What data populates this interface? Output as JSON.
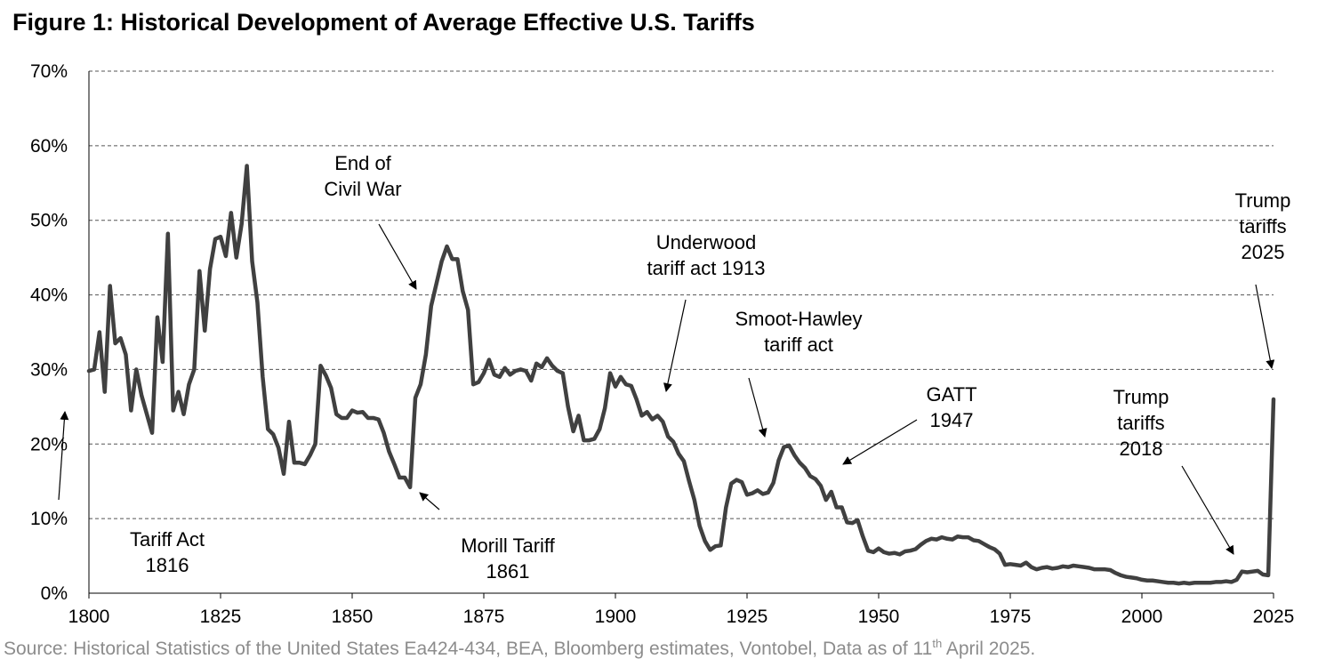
{
  "title": "Figure 1: Historical Development of Average Effective U.S. Tariffs",
  "source": {
    "text_before": "Source: Historical Statistics of the United States Ea424-434, BEA, Bloomberg estimates, Vontobel, Data as of  11",
    "superscript": "th",
    "text_after": " April 2025."
  },
  "chart_data": {
    "type": "line",
    "title": "Figure 1: Historical Development of Average Effective U.S. Tariffs",
    "xlabel": "",
    "ylabel": "",
    "xlim": [
      1800,
      2025
    ],
    "ylim": [
      0,
      70
    ],
    "grid": true,
    "x_ticks": [
      1800,
      1825,
      1850,
      1875,
      1900,
      1925,
      1950,
      1975,
      2000,
      2025
    ],
    "y_ticks": [
      0,
      10,
      20,
      30,
      40,
      50,
      60,
      70
    ],
    "y_tick_labels": [
      "0%",
      "10%",
      "20%",
      "30%",
      "40%",
      "50%",
      "60%",
      "70%"
    ],
    "series_color": "#404040",
    "series": [
      {
        "points": [
          [
            1800,
            29.8
          ],
          [
            1801,
            30
          ],
          [
            1802,
            35
          ],
          [
            1803,
            27
          ],
          [
            1804,
            41.2
          ],
          [
            1805,
            33.5
          ],
          [
            1806,
            34.2
          ],
          [
            1807,
            32
          ],
          [
            1808,
            24.5
          ],
          [
            1809,
            30
          ],
          [
            1810,
            26.5
          ],
          [
            1811,
            24
          ],
          [
            1812,
            21.5
          ],
          [
            1813,
            37
          ],
          [
            1814,
            31
          ],
          [
            1815,
            48.2
          ],
          [
            1816,
            24.5
          ],
          [
            1817,
            27
          ],
          [
            1818,
            24
          ],
          [
            1819,
            28
          ],
          [
            1820,
            30
          ],
          [
            1821,
            43.2
          ],
          [
            1822,
            35.2
          ],
          [
            1823,
            43.5
          ],
          [
            1824,
            47.5
          ],
          [
            1825,
            47.8
          ],
          [
            1826,
            45.2
          ],
          [
            1827,
            51
          ],
          [
            1828,
            45
          ],
          [
            1829,
            49.5
          ],
          [
            1830,
            57.3
          ],
          [
            1831,
            44.5
          ],
          [
            1832,
            39
          ],
          [
            1833,
            29
          ],
          [
            1834,
            22
          ],
          [
            1835,
            21.3
          ],
          [
            1836,
            19.5
          ],
          [
            1837,
            16
          ],
          [
            1838,
            23
          ],
          [
            1839,
            17.5
          ],
          [
            1840,
            17.5
          ],
          [
            1841,
            17.3
          ],
          [
            1842,
            18.5
          ],
          [
            1843,
            20
          ],
          [
            1844,
            30.5
          ],
          [
            1845,
            29.2
          ],
          [
            1846,
            27.5
          ],
          [
            1847,
            24
          ],
          [
            1848,
            23.5
          ],
          [
            1849,
            23.5
          ],
          [
            1850,
            24.5
          ],
          [
            1851,
            24.2
          ],
          [
            1852,
            24.3
          ],
          [
            1853,
            23.5
          ],
          [
            1854,
            23.5
          ],
          [
            1855,
            23.3
          ],
          [
            1856,
            21.5
          ],
          [
            1857,
            19
          ],
          [
            1858,
            17.3
          ],
          [
            1859,
            15.5
          ],
          [
            1860,
            15.5
          ],
          [
            1861,
            14.2
          ],
          [
            1862,
            26.2
          ],
          [
            1863,
            28
          ],
          [
            1864,
            32
          ],
          [
            1865,
            38.5
          ],
          [
            1866,
            41.5
          ],
          [
            1867,
            44.5
          ],
          [
            1868,
            46.5
          ],
          [
            1869,
            44.8
          ],
          [
            1870,
            44.8
          ],
          [
            1871,
            40.5
          ],
          [
            1872,
            38
          ],
          [
            1873,
            28
          ],
          [
            1874,
            28.3
          ],
          [
            1875,
            29.5
          ],
          [
            1876,
            31.3
          ],
          [
            1877,
            29.3
          ],
          [
            1878,
            29
          ],
          [
            1879,
            30.2
          ],
          [
            1880,
            29.3
          ],
          [
            1881,
            29.8
          ],
          [
            1882,
            30
          ],
          [
            1883,
            29.8
          ],
          [
            1884,
            28.5
          ],
          [
            1885,
            30.8
          ],
          [
            1886,
            30.3
          ],
          [
            1887,
            31.5
          ],
          [
            1888,
            30.5
          ],
          [
            1889,
            29.8
          ],
          [
            1890,
            29.5
          ],
          [
            1891,
            25
          ],
          [
            1892,
            21.7
          ],
          [
            1893,
            23.8
          ],
          [
            1894,
            20.5
          ],
          [
            1895,
            20.5
          ],
          [
            1896,
            20.7
          ],
          [
            1897,
            22
          ],
          [
            1898,
            24.8
          ],
          [
            1899,
            29.5
          ],
          [
            1900,
            27.7
          ],
          [
            1901,
            29
          ],
          [
            1902,
            28
          ],
          [
            1903,
            27.8
          ],
          [
            1904,
            26
          ],
          [
            1905,
            23.8
          ],
          [
            1906,
            24.3
          ],
          [
            1907,
            23.3
          ],
          [
            1908,
            23.8
          ],
          [
            1909,
            23
          ],
          [
            1910,
            21
          ],
          [
            1911,
            20.3
          ],
          [
            1912,
            18.7
          ],
          [
            1913,
            17.7
          ],
          [
            1914,
            15
          ],
          [
            1915,
            12.5
          ],
          [
            1916,
            9
          ],
          [
            1917,
            7
          ],
          [
            1918,
            5.8
          ],
          [
            1919,
            6.3
          ],
          [
            1920,
            6.4
          ],
          [
            1921,
            11.5
          ],
          [
            1922,
            14.7
          ],
          [
            1923,
            15.2
          ],
          [
            1924,
            14.9
          ],
          [
            1925,
            13.2
          ],
          [
            1926,
            13.4
          ],
          [
            1927,
            13.8
          ],
          [
            1928,
            13.3
          ],
          [
            1929,
            13.5
          ],
          [
            1930,
            14.8
          ],
          [
            1931,
            17.8
          ],
          [
            1932,
            19.6
          ],
          [
            1933,
            19.8
          ],
          [
            1934,
            18.5
          ],
          [
            1935,
            17.5
          ],
          [
            1936,
            16.8
          ],
          [
            1937,
            15.7
          ],
          [
            1938,
            15.3
          ],
          [
            1939,
            14.4
          ],
          [
            1940,
            12.5
          ],
          [
            1941,
            13.6
          ],
          [
            1942,
            11.5
          ],
          [
            1943,
            11.5
          ],
          [
            1944,
            9.5
          ],
          [
            1945,
            9.4
          ],
          [
            1946,
            9.8
          ],
          [
            1947,
            7.6
          ],
          [
            1948,
            5.7
          ],
          [
            1949,
            5.5
          ],
          [
            1950,
            6
          ],
          [
            1951,
            5.5
          ],
          [
            1952,
            5.3
          ],
          [
            1953,
            5.4
          ],
          [
            1954,
            5.2
          ],
          [
            1955,
            5.6
          ],
          [
            1956,
            5.7
          ],
          [
            1957,
            5.9
          ],
          [
            1958,
            6.5
          ],
          [
            1959,
            7
          ],
          [
            1960,
            7.3
          ],
          [
            1961,
            7.2
          ],
          [
            1962,
            7.5
          ],
          [
            1963,
            7.3
          ],
          [
            1964,
            7.2
          ],
          [
            1965,
            7.6
          ],
          [
            1966,
            7.5
          ],
          [
            1967,
            7.5
          ],
          [
            1968,
            7.1
          ],
          [
            1969,
            7
          ],
          [
            1970,
            6.6
          ],
          [
            1971,
            6.2
          ],
          [
            1972,
            5.9
          ],
          [
            1973,
            5.3
          ],
          [
            1974,
            3.8
          ],
          [
            1975,
            3.9
          ],
          [
            1976,
            3.8
          ],
          [
            1977,
            3.7
          ],
          [
            1978,
            4.1
          ],
          [
            1979,
            3.5
          ],
          [
            1980,
            3.2
          ],
          [
            1981,
            3.4
          ],
          [
            1982,
            3.5
          ],
          [
            1983,
            3.3
          ],
          [
            1984,
            3.4
          ],
          [
            1985,
            3.6
          ],
          [
            1986,
            3.5
          ],
          [
            1987,
            3.7
          ],
          [
            1988,
            3.6
          ],
          [
            1989,
            3.5
          ],
          [
            1990,
            3.4
          ],
          [
            1991,
            3.2
          ],
          [
            1992,
            3.2
          ],
          [
            1993,
            3.2
          ],
          [
            1994,
            3.1
          ],
          [
            1995,
            2.7
          ],
          [
            1996,
            2.4
          ],
          [
            1997,
            2.2
          ],
          [
            1998,
            2.1
          ],
          [
            1999,
            2
          ],
          [
            2000,
            1.8
          ],
          [
            2001,
            1.7
          ],
          [
            2002,
            1.7
          ],
          [
            2003,
            1.6
          ],
          [
            2004,
            1.5
          ],
          [
            2005,
            1.4
          ],
          [
            2006,
            1.4
          ],
          [
            2007,
            1.3
          ],
          [
            2008,
            1.4
          ],
          [
            2009,
            1.3
          ],
          [
            2010,
            1.4
          ],
          [
            2011,
            1.4
          ],
          [
            2012,
            1.4
          ],
          [
            2013,
            1.4
          ],
          [
            2014,
            1.5
          ],
          [
            2015,
            1.5
          ],
          [
            2016,
            1.6
          ],
          [
            2017,
            1.5
          ],
          [
            2018,
            1.8
          ],
          [
            2019,
            2.9
          ],
          [
            2020,
            2.8
          ],
          [
            2021,
            2.9
          ],
          [
            2022,
            3
          ],
          [
            2023,
            2.5
          ],
          [
            2024,
            2.4
          ],
          [
            2025,
            26
          ]
        ]
      }
    ],
    "annotations": [
      {
        "lines": [
          "Tariff Act",
          "1816"
        ],
        "arrow": "up"
      },
      {
        "lines": [
          "End of",
          "Civil War"
        ],
        "arrow": "down"
      },
      {
        "lines": [
          "Morill Tariff",
          "1861"
        ],
        "arrow": "up"
      },
      {
        "lines": [
          "Underwood",
          "tariff act 1913"
        ],
        "arrow": "down"
      },
      {
        "lines": [
          "Smoot-Hawley",
          "tariff act"
        ],
        "arrow": "down"
      },
      {
        "lines": [
          "GATT",
          "1947"
        ],
        "arrow": "down"
      },
      {
        "lines": [
          "Trump",
          "tariffs",
          "2018"
        ],
        "arrow": "down"
      },
      {
        "lines": [
          "Trump",
          "tariffs",
          "2025"
        ],
        "arrow": "down"
      }
    ]
  }
}
